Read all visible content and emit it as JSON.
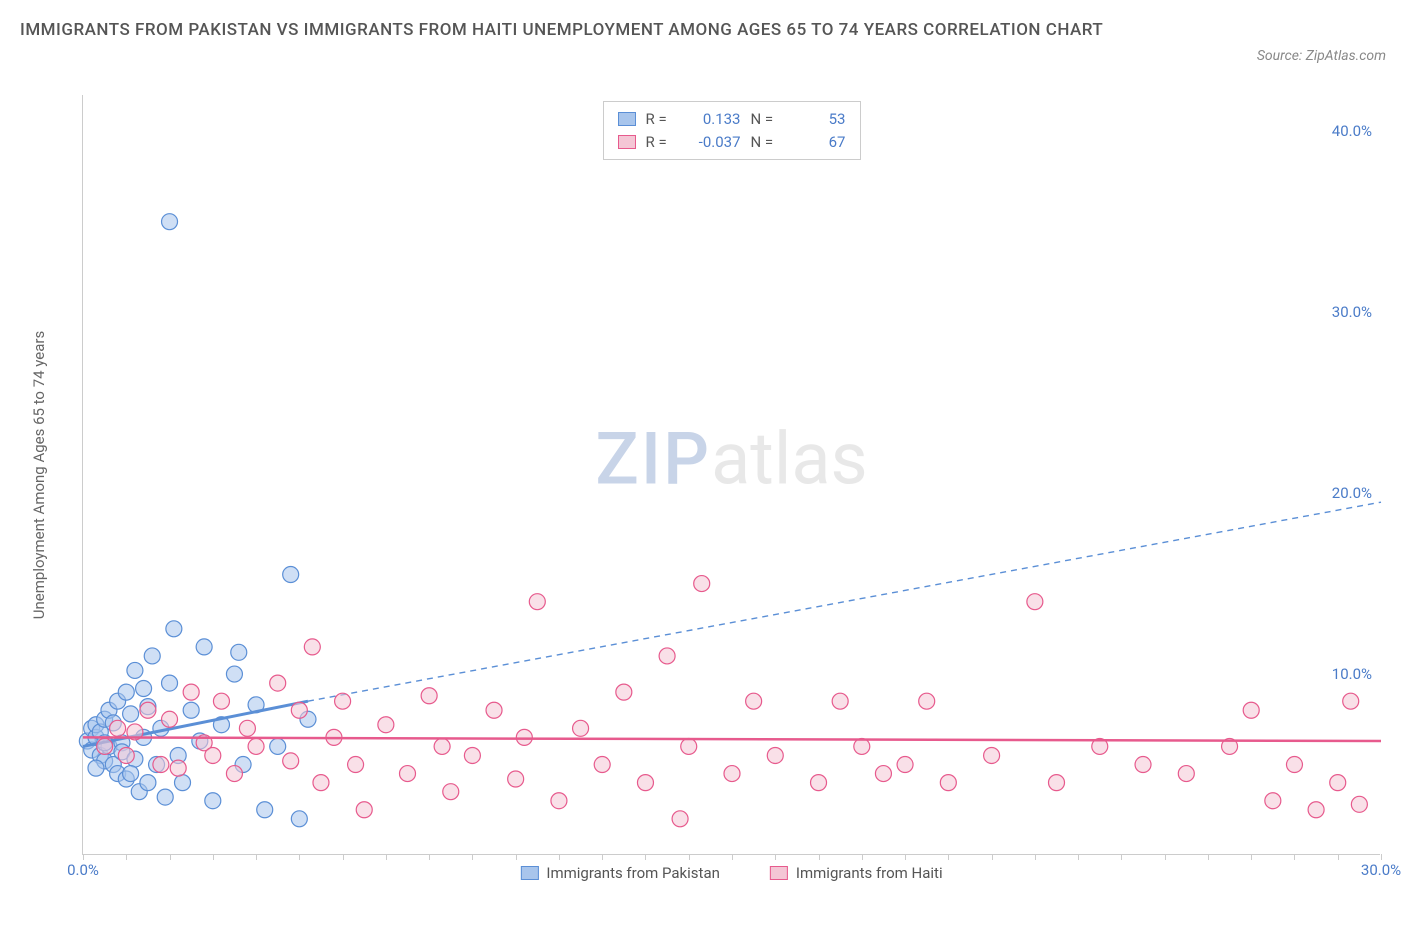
{
  "title": "IMMIGRANTS FROM PAKISTAN VS IMMIGRANTS FROM HAITI UNEMPLOYMENT AMONG AGES 65 TO 74 YEARS CORRELATION CHART",
  "source_label": "Source: ZipAtlas.com",
  "y_axis_label": "Unemployment Among Ages 65 to 74 years",
  "watermark": {
    "part1": "ZIP",
    "part2": "atlas"
  },
  "chart": {
    "type": "scatter",
    "background_color": "#ffffff",
    "border_color": "#cccccc",
    "xlim": [
      0,
      30
    ],
    "ylim": [
      0,
      42
    ],
    "x_ticks": [
      {
        "value": 0,
        "label": "0.0%"
      },
      {
        "value": 30,
        "label": "30.0%"
      }
    ],
    "y_ticks": [
      {
        "value": 10,
        "label": "10.0%"
      },
      {
        "value": 20,
        "label": "20.0%"
      },
      {
        "value": 30,
        "label": "30.0%"
      },
      {
        "value": 40,
        "label": "40.0%"
      }
    ],
    "x_minor_tick_step": 1,
    "marker_radius": 8,
    "marker_opacity": 0.55,
    "marker_stroke_width": 1.2,
    "series": [
      {
        "id": "pakistan",
        "name": "Immigrants from Pakistan",
        "color_fill": "#a8c5ec",
        "color_stroke": "#5b8fd6",
        "R": "0.133",
        "N": "53",
        "trend": {
          "solid": {
            "x1": 0,
            "y1": 6.0,
            "x2": 5.2,
            "y2": 8.5,
            "width": 3
          },
          "dashed": {
            "x1": 5.2,
            "y1": 8.5,
            "x2": 30,
            "y2": 19.5,
            "width": 1.4,
            "dash": "6,5"
          }
        },
        "points": [
          [
            0.1,
            6.3
          ],
          [
            0.2,
            7.0
          ],
          [
            0.2,
            5.8
          ],
          [
            0.3,
            6.5
          ],
          [
            0.3,
            7.2
          ],
          [
            0.4,
            5.5
          ],
          [
            0.4,
            6.8
          ],
          [
            0.5,
            7.5
          ],
          [
            0.5,
            5.2
          ],
          [
            0.6,
            6.0
          ],
          [
            0.6,
            8.0
          ],
          [
            0.7,
            5.0
          ],
          [
            0.7,
            7.3
          ],
          [
            0.8,
            4.5
          ],
          [
            0.8,
            8.5
          ],
          [
            0.9,
            6.2
          ],
          [
            0.9,
            5.7
          ],
          [
            1.0,
            9.0
          ],
          [
            1.0,
            4.2
          ],
          [
            1.1,
            7.8
          ],
          [
            1.2,
            5.3
          ],
          [
            1.2,
            10.2
          ],
          [
            1.3,
            3.5
          ],
          [
            1.4,
            6.5
          ],
          [
            1.5,
            8.2
          ],
          [
            1.5,
            4.0
          ],
          [
            1.6,
            11.0
          ],
          [
            1.7,
            5.0
          ],
          [
            1.8,
            7.0
          ],
          [
            1.9,
            3.2
          ],
          [
            2.0,
            9.5
          ],
          [
            2.1,
            12.5
          ],
          [
            2.2,
            5.5
          ],
          [
            2.3,
            4.0
          ],
          [
            2.5,
            8.0
          ],
          [
            2.7,
            6.3
          ],
          [
            2.8,
            11.5
          ],
          [
            3.0,
            3.0
          ],
          [
            3.2,
            7.2
          ],
          [
            3.5,
            10.0
          ],
          [
            3.6,
            11.2
          ],
          [
            3.7,
            5.0
          ],
          [
            4.0,
            8.3
          ],
          [
            4.2,
            2.5
          ],
          [
            4.5,
            6.0
          ],
          [
            4.8,
            15.5
          ],
          [
            5.0,
            2.0
          ],
          [
            5.2,
            7.5
          ],
          [
            0.3,
            4.8
          ],
          [
            1.1,
            4.5
          ],
          [
            1.4,
            9.2
          ],
          [
            2.0,
            35.0
          ],
          [
            0.5,
            6.2
          ]
        ]
      },
      {
        "id": "haiti",
        "name": "Immigrants from Haiti",
        "color_fill": "#f4c6d5",
        "color_stroke": "#e75a8d",
        "R": "-0.037",
        "N": "67",
        "trend": {
          "solid": {
            "x1": 0,
            "y1": 6.5,
            "x2": 30,
            "y2": 6.3,
            "width": 2.5
          }
        },
        "points": [
          [
            0.5,
            6.0
          ],
          [
            0.8,
            7.0
          ],
          [
            1.0,
            5.5
          ],
          [
            1.2,
            6.8
          ],
          [
            1.5,
            8.0
          ],
          [
            1.8,
            5.0
          ],
          [
            2.0,
            7.5
          ],
          [
            2.2,
            4.8
          ],
          [
            2.5,
            9.0
          ],
          [
            2.8,
            6.2
          ],
          [
            3.0,
            5.5
          ],
          [
            3.2,
            8.5
          ],
          [
            3.5,
            4.5
          ],
          [
            3.8,
            7.0
          ],
          [
            4.0,
            6.0
          ],
          [
            4.5,
            9.5
          ],
          [
            4.8,
            5.2
          ],
          [
            5.0,
            8.0
          ],
          [
            5.3,
            11.5
          ],
          [
            5.5,
            4.0
          ],
          [
            5.8,
            6.5
          ],
          [
            6.0,
            8.5
          ],
          [
            6.3,
            5.0
          ],
          [
            6.5,
            2.5
          ],
          [
            7.0,
            7.2
          ],
          [
            7.5,
            4.5
          ],
          [
            8.0,
            8.8
          ],
          [
            8.3,
            6.0
          ],
          [
            8.5,
            3.5
          ],
          [
            9.0,
            5.5
          ],
          [
            9.5,
            8.0
          ],
          [
            10.0,
            4.2
          ],
          [
            10.2,
            6.5
          ],
          [
            10.5,
            14.0
          ],
          [
            11.0,
            3.0
          ],
          [
            11.5,
            7.0
          ],
          [
            12.0,
            5.0
          ],
          [
            12.5,
            9.0
          ],
          [
            13.0,
            4.0
          ],
          [
            13.5,
            11.0
          ],
          [
            13.8,
            2.0
          ],
          [
            14.0,
            6.0
          ],
          [
            14.3,
            15.0
          ],
          [
            15.0,
            4.5
          ],
          [
            15.5,
            8.5
          ],
          [
            16.0,
            5.5
          ],
          [
            17.0,
            4.0
          ],
          [
            17.5,
            8.5
          ],
          [
            18.0,
            6.0
          ],
          [
            18.5,
            4.5
          ],
          [
            19.0,
            5.0
          ],
          [
            19.5,
            8.5
          ],
          [
            20.0,
            4.0
          ],
          [
            21.0,
            5.5
          ],
          [
            22.0,
            14.0
          ],
          [
            22.5,
            4.0
          ],
          [
            23.5,
            6.0
          ],
          [
            24.5,
            5.0
          ],
          [
            25.5,
            4.5
          ],
          [
            26.5,
            6.0
          ],
          [
            27.0,
            8.0
          ],
          [
            27.5,
            3.0
          ],
          [
            28.0,
            5.0
          ],
          [
            28.5,
            2.5
          ],
          [
            29.0,
            4.0
          ],
          [
            29.3,
            8.5
          ],
          [
            29.5,
            2.8
          ]
        ]
      }
    ]
  },
  "legend_top": {
    "r_label": "R =",
    "n_label": "N ="
  }
}
